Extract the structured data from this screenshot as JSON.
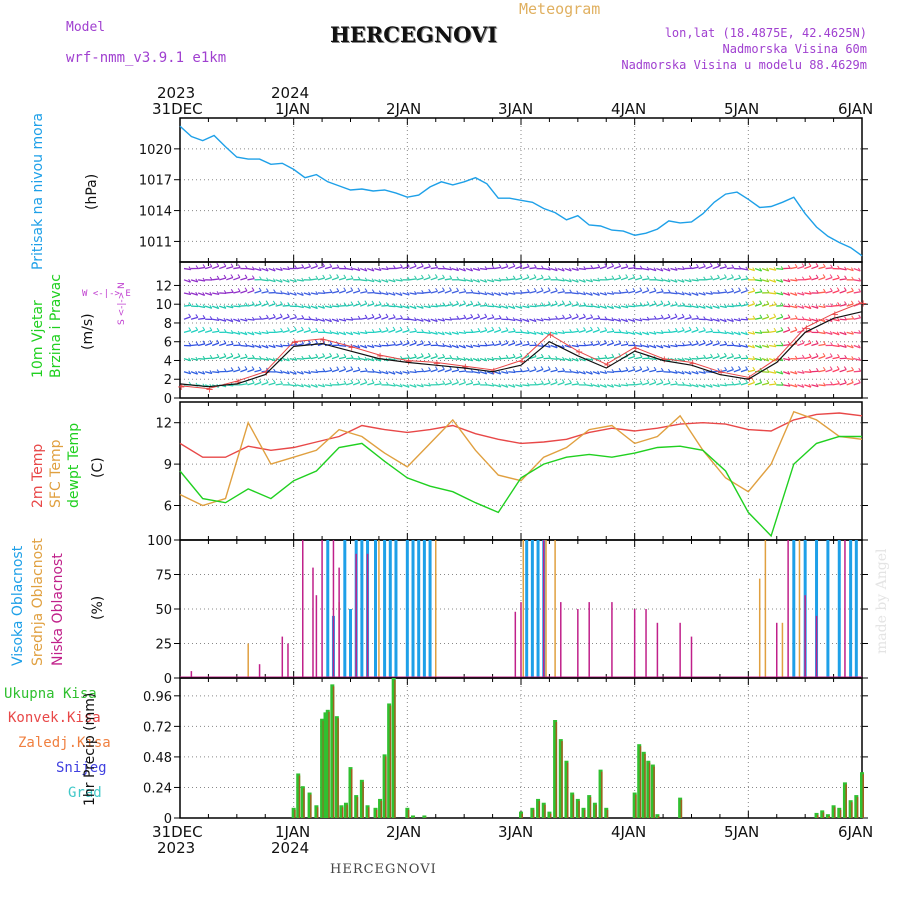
{
  "header": {
    "model_label": "Model",
    "model_name": "wrf-nmm_v3.9.1 e1km",
    "title": "HERCEGNOVI",
    "meteogram": "Meteogram",
    "lonlat": "lon,lat (18.4875E, 42.4625N)",
    "elevation": "Nadmorska Visina 60m",
    "model_elevation": "Nadmorska Visina u modelu 88.4629m"
  },
  "top_dates": [
    {
      "day": "31DEC",
      "year": "2023"
    },
    {
      "day": "1JAN",
      "year": "2024"
    },
    {
      "day": "2JAN",
      "year": ""
    },
    {
      "day": "3JAN",
      "year": ""
    },
    {
      "day": "4JAN",
      "year": ""
    },
    {
      "day": "5JAN",
      "year": ""
    },
    {
      "day": "6JAN",
      "year": ""
    }
  ],
  "footer": "HERCEGNOVI",
  "watermark": "made by Angel",
  "panel_labels": {
    "pressure": {
      "name": "Pritisak na nivou mora",
      "unit": "(hPa)"
    },
    "wind": {
      "name1": "10m Vjetar",
      "name2": "Brzina i Pravac",
      "unit": "(m/s)",
      "compass": "W <-|-> E",
      "compass2": "S <-|-> N"
    },
    "temp": {
      "name1": "2m Temp",
      "name2": "SFC Temp",
      "name3": "dewpt Temp",
      "unit": "(C)"
    },
    "cloud": {
      "name1": "Visoka Oblacnost",
      "name2": "Srednja Oblacnost",
      "name3": "Niska Oblacnost",
      "unit": "(%)"
    },
    "precip": {
      "ukupna": "Ukupna Kisa",
      "konvek": "Konvek.Kisa",
      "zaledj": "Zaledj.Kisa",
      "snijeg": "Snijeg",
      "grad": "Grad",
      "unit": "1hr Precip (mm)"
    }
  },
  "colors": {
    "pressure": "#1ea0e8",
    "temp2m": "#e84848",
    "sfc": "#e0a040",
    "dewpt": "#20d020",
    "high_cloud": "#1ea0e8",
    "mid_cloud": "#e0a040",
    "low_cloud": "#c0208a",
    "precip": "#30c030",
    "conv": "#e84848",
    "frz": "#f08040",
    "snow": "#4040e0",
    "grad": "#40c8c8"
  },
  "chart_data": [
    {
      "type": "line",
      "name": "pressure",
      "x_unit": "days since 31DEC 00UTC",
      "xlim": [
        0,
        6
      ],
      "ylim": [
        1009,
        1023
      ],
      "yticks": [
        1011,
        1014,
        1017,
        1020
      ],
      "x": [
        0,
        0.1,
        0.2,
        0.3,
        0.4,
        0.5,
        0.6,
        0.7,
        0.8,
        0.9,
        1.0,
        1.1,
        1.2,
        1.3,
        1.4,
        1.5,
        1.6,
        1.7,
        1.8,
        1.9,
        2.0,
        2.1,
        2.2,
        2.3,
        2.4,
        2.5,
        2.6,
        2.7,
        2.8,
        2.9,
        3.0,
        3.1,
        3.2,
        3.3,
        3.4,
        3.5,
        3.6,
        3.7,
        3.8,
        3.9,
        4.0,
        4.1,
        4.2,
        4.3,
        4.4,
        4.5,
        4.6,
        4.7,
        4.8,
        4.9,
        5.0,
        5.1,
        5.2,
        5.3,
        5.4,
        5.5,
        5.6,
        5.7,
        5.8,
        5.9,
        6.0
      ],
      "values": [
        1022.2,
        1021.2,
        1020.8,
        1021.3,
        1020.2,
        1019.2,
        1019.0,
        1019.0,
        1018.5,
        1018.6,
        1018.0,
        1017.2,
        1017.5,
        1016.8,
        1016.4,
        1016.0,
        1016.1,
        1015.9,
        1016.0,
        1015.7,
        1015.3,
        1015.5,
        1016.3,
        1016.8,
        1016.5,
        1016.8,
        1017.2,
        1016.6,
        1015.2,
        1015.2,
        1015.0,
        1014.8,
        1014.2,
        1013.8,
        1013.1,
        1013.5,
        1012.6,
        1012.5,
        1012.1,
        1012.0,
        1011.6,
        1011.8,
        1012.2,
        1013.0,
        1012.8,
        1012.9,
        1013.7,
        1014.8,
        1015.6,
        1015.8,
        1015.1,
        1014.3,
        1014.4,
        1014.8,
        1015.3,
        1013.7,
        1012.4,
        1011.5,
        1010.9,
        1010.4,
        1009.6
      ]
    },
    {
      "type": "line",
      "name": "wind",
      "ylim": [
        0,
        14.5
      ],
      "yticks": [
        0,
        2,
        4,
        6,
        8,
        10,
        12
      ],
      "x": [
        0,
        0.25,
        0.5,
        0.75,
        1.0,
        1.25,
        1.5,
        1.75,
        2.0,
        2.25,
        2.5,
        2.75,
        3.0,
        3.25,
        3.5,
        3.75,
        4.0,
        4.25,
        4.5,
        4.75,
        5.0,
        5.25,
        5.5,
        5.75,
        6.0
      ],
      "speed": [
        1.5,
        1.2,
        1.5,
        2.5,
        5.5,
        5.8,
        5.0,
        4.2,
        3.8,
        3.5,
        3.2,
        2.8,
        3.5,
        6.0,
        4.5,
        3.2,
        5.0,
        4.0,
        3.5,
        2.5,
        2.0,
        3.8,
        7.0,
        8.5,
        9.2
      ],
      "gust": [
        1.3,
        1.0,
        1.8,
        2.8,
        6.0,
        6.3,
        5.5,
        4.6,
        4.0,
        3.8,
        3.4,
        3.0,
        4.0,
        6.8,
        5.0,
        3.6,
        5.4,
        4.2,
        3.8,
        2.8,
        2.2,
        4.2,
        7.5,
        9.0,
        10.2
      ],
      "row_levels": [
        1.4,
        2.8,
        4.2,
        5.6,
        7.0,
        8.4,
        9.8,
        11.2,
        12.6,
        13.8
      ]
    },
    {
      "type": "line",
      "name": "temperature",
      "ylim": [
        3.5,
        13.5
      ],
      "yticks": [
        6,
        9,
        12
      ],
      "x": [
        0,
        0.2,
        0.4,
        0.6,
        0.8,
        1.0,
        1.2,
        1.4,
        1.6,
        1.8,
        2.0,
        2.2,
        2.4,
        2.6,
        2.8,
        3.0,
        3.2,
        3.4,
        3.6,
        3.8,
        4.0,
        4.2,
        4.4,
        4.6,
        4.8,
        5.0,
        5.2,
        5.4,
        5.6,
        5.8,
        6.0
      ],
      "series": [
        {
          "name": "2m Temp",
          "values": [
            10.5,
            9.5,
            9.5,
            10.3,
            10.0,
            10.2,
            10.6,
            11.0,
            11.8,
            11.5,
            11.3,
            11.5,
            11.8,
            11.2,
            10.8,
            10.5,
            10.6,
            10.8,
            11.3,
            11.6,
            11.4,
            11.6,
            11.9,
            12.0,
            11.9,
            11.5,
            11.4,
            12.2,
            12.6,
            12.7,
            12.5
          ]
        },
        {
          "name": "SFC Temp",
          "values": [
            6.8,
            6.0,
            6.5,
            12.0,
            9.0,
            9.5,
            10.0,
            11.5,
            11.0,
            9.8,
            8.8,
            10.5,
            12.2,
            10.0,
            8.2,
            7.8,
            9.5,
            10.2,
            11.5,
            11.8,
            10.5,
            11.0,
            12.5,
            10.0,
            8.0,
            7.0,
            9.0,
            12.8,
            12.2,
            11.0,
            10.8
          ]
        },
        {
          "name": "dewpt Temp",
          "values": [
            8.5,
            6.5,
            6.2,
            7.2,
            6.5,
            7.8,
            8.5,
            10.2,
            10.5,
            9.2,
            8.0,
            7.4,
            7.0,
            6.2,
            5.5,
            8.0,
            9.0,
            9.5,
            9.7,
            9.5,
            9.8,
            10.2,
            10.3,
            10.0,
            8.5,
            5.5,
            3.8,
            9.0,
            10.5,
            11.0,
            11.0
          ]
        }
      ]
    },
    {
      "type": "bar",
      "name": "clouds",
      "ylim": [
        0,
        100
      ],
      "yticks": [
        0,
        25,
        50,
        75,
        100
      ],
      "series": [
        {
          "name": "Visoka Oblacnost",
          "x": [
            1.3,
            1.35,
            1.45,
            1.5,
            1.55,
            1.6,
            1.65,
            1.72,
            1.8,
            1.85,
            1.9,
            2.0,
            2.05,
            2.1,
            2.15,
            2.2,
            3.05,
            3.1,
            3.15,
            3.2,
            5.4,
            5.5,
            5.6,
            5.7,
            5.8,
            5.9,
            5.95
          ],
          "values": [
            100,
            45,
            100,
            50,
            100,
            100,
            100,
            100,
            100,
            100,
            100,
            100,
            100,
            100,
            100,
            100,
            100,
            100,
            100,
            100,
            100,
            100,
            100,
            100,
            100,
            100,
            100
          ]
        },
        {
          "name": "Srednja Oblacnost",
          "x": [
            0.6,
            1.4,
            1.75,
            2.25,
            3.02,
            3.22,
            3.3,
            5.1,
            5.15,
            5.3,
            5.45
          ],
          "values": [
            25,
            55,
            100,
            100,
            100,
            100,
            100,
            72,
            100,
            40,
            100
          ]
        },
        {
          "name": "Niska Oblacnost",
          "x": [
            0.1,
            0.7,
            0.9,
            0.95,
            1.08,
            1.17,
            1.2,
            1.25,
            1.35,
            1.4,
            1.55,
            1.65,
            2.95,
            3.0,
            3.2,
            3.35,
            3.5,
            3.6,
            3.8,
            4.0,
            4.1,
            4.2,
            4.4,
            4.5,
            5.25,
            5.35,
            5.5,
            5.6,
            5.85
          ],
          "values": [
            5,
            10,
            30,
            25,
            100,
            80,
            60,
            100,
            100,
            80,
            90,
            90,
            48,
            55,
            100,
            55,
            50,
            55,
            55,
            50,
            50,
            40,
            40,
            30,
            40,
            100,
            60,
            45,
            100
          ]
        }
      ]
    },
    {
      "type": "bar",
      "name": "precipitation",
      "ylim": [
        0,
        1.1
      ],
      "yticks": [
        0,
        0.24,
        0.48,
        0.72,
        0.96
      ],
      "x": [
        1.0,
        1.04,
        1.08,
        1.14,
        1.2,
        1.25,
        1.28,
        1.3,
        1.34,
        1.38,
        1.42,
        1.46,
        1.5,
        1.55,
        1.6,
        1.65,
        1.72,
        1.76,
        1.8,
        1.84,
        1.88,
        2.0,
        2.05,
        2.15,
        3.0,
        3.1,
        3.15,
        3.2,
        3.25,
        3.3,
        3.35,
        3.4,
        3.45,
        3.5,
        3.55,
        3.6,
        3.65,
        3.7,
        3.75,
        4.0,
        4.04,
        4.08,
        4.12,
        4.16,
        4.2,
        4.4,
        5.6,
        5.65,
        5.7,
        5.75,
        5.8,
        5.85,
        5.9,
        5.95,
        6.0
      ],
      "values": [
        0.08,
        0.35,
        0.25,
        0.2,
        0.1,
        0.78,
        0.83,
        0.85,
        1.05,
        0.8,
        0.1,
        0.12,
        0.4,
        0.18,
        0.3,
        0.1,
        0.08,
        0.15,
        0.5,
        0.9,
        1.1,
        0.08,
        0.02,
        0.02,
        0.05,
        0.08,
        0.15,
        0.12,
        0.05,
        0.77,
        0.62,
        0.45,
        0.2,
        0.15,
        0.08,
        0.18,
        0.12,
        0.38,
        0.08,
        0.2,
        0.58,
        0.52,
        0.45,
        0.42,
        0.03,
        0.16,
        0.04,
        0.06,
        0.03,
        0.1,
        0.08,
        0.28,
        0.14,
        0.18,
        0.36
      ]
    }
  ]
}
